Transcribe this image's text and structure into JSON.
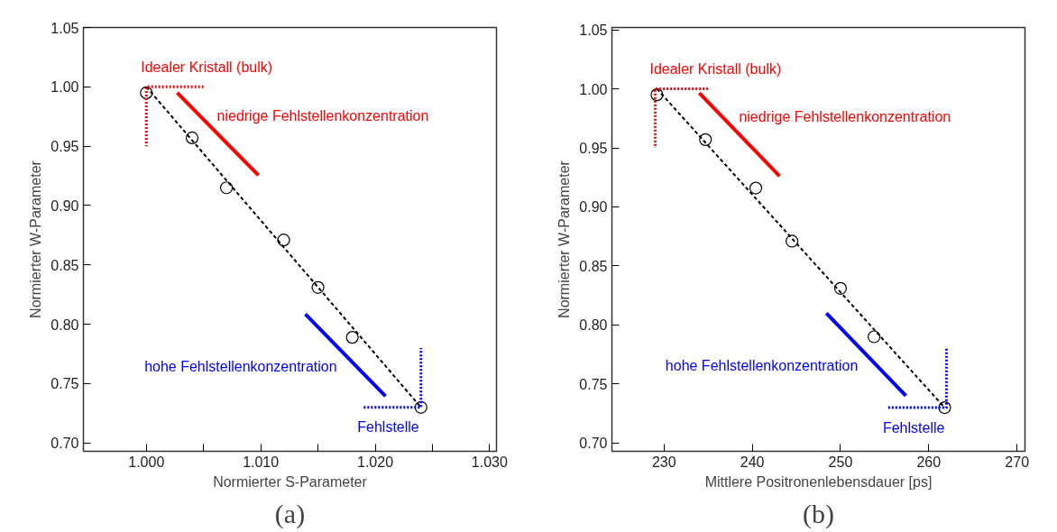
{
  "chart_data": [
    {
      "type": "scatter",
      "subtitle": "(a)",
      "xlabel": "Normierter S-Parameter",
      "ylabel": "Normierter W-Parameter",
      "xlim": [
        0.9945,
        1.0306
      ],
      "ylim": [
        0.693,
        1.05
      ],
      "xticks": [
        {
          "value": 1.0,
          "label": "1.000"
        },
        {
          "value": 1.005,
          "label": null
        },
        {
          "value": 1.01,
          "label": "1.010"
        },
        {
          "value": 1.015,
          "label": null
        },
        {
          "value": 1.02,
          "label": "1.020"
        },
        {
          "value": 1.025,
          "label": null
        },
        {
          "value": 1.03,
          "label": "1.030"
        }
      ],
      "yticks": [
        {
          "value": 0.7,
          "label": "0.70"
        },
        0.75,
        {
          "value": 0.8,
          "label": "0.80"
        },
        0.85,
        {
          "value": 0.9,
          "label": "0.90"
        },
        0.95,
        {
          "value": 1.0,
          "label": "1.00"
        },
        1.05
      ],
      "grid": false,
      "legend": false,
      "series": [
        {
          "marker": "circle",
          "color": "#000000",
          "x": [
            1.0,
            1.004,
            1.007,
            1.012,
            1.015,
            1.018,
            1.024
          ],
          "values": [
            0.995,
            0.957,
            0.915,
            0.871,
            0.831,
            0.789,
            0.73
          ]
        },
        {
          "type": "line",
          "line_style": "dashed",
          "color": "#000000",
          "x": [
            1.0,
            1.024
          ],
          "values": [
            1.0,
            0.73
          ]
        },
        {
          "type": "line",
          "line_style": "dotted",
          "color": "#ff0000",
          "name": "Idealer Kristall (bulk)",
          "x": [
            1.005,
            1.0,
            1.0
          ],
          "values": [
            1.0,
            1.0,
            0.95
          ]
        },
        {
          "type": "line",
          "line_style": "dotted",
          "color": "#0000ff",
          "name": "Fehlstelle",
          "x": [
            1.019,
            1.024,
            1.024
          ],
          "values": [
            0.73,
            0.73,
            0.78
          ]
        },
        {
          "type": "line",
          "line_style": "solid",
          "color": "#ff0000",
          "name": "niedrige Fehlstellenkonzentration",
          "x": [
            1.0027,
            1.0098
          ],
          "values": [
            0.995,
            0.9255
          ]
        },
        {
          "type": "line",
          "line_style": "solid",
          "color": "#0000ff",
          "name": "hohe Fehlstellenkonzentration",
          "x": [
            1.0139,
            1.0209
          ],
          "values": [
            0.8085,
            0.7394
          ]
        }
      ]
    },
    {
      "type": "scatter",
      "subtitle": "(b)",
      "xlabel": "Mittlere Positronenlebensdauer [ps]",
      "ylabel": "Normierter W-Parameter",
      "xlim": [
        224.1,
        270.9
      ],
      "ylim": [
        0.693,
        1.052
      ],
      "xticks": [
        230,
        240,
        250,
        260,
        270
      ],
      "yticks": [
        {
          "value": 0.7,
          "label": "0.70"
        },
        0.75,
        {
          "value": 0.8,
          "label": "0.80"
        },
        0.85,
        {
          "value": 0.9,
          "label": "0.90"
        },
        0.95,
        {
          "value": 1.0,
          "label": "1.00"
        },
        1.05
      ],
      "grid": false,
      "legend": false,
      "series": [
        {
          "marker": "circle",
          "color": "#000000",
          "x": [
            229.2,
            234.7,
            240.4,
            244.5,
            250.0,
            253.8,
            261.8
          ],
          "values": [
            0.995,
            0.957,
            0.916,
            0.871,
            0.831,
            0.79,
            0.73
          ]
        },
        {
          "type": "line",
          "line_style": "dashed",
          "color": "#000000",
          "x": [
            229.2,
            261.8
          ],
          "values": [
            1.0,
            0.73
          ]
        },
        {
          "type": "line",
          "line_style": "dotted",
          "color": "#ff0000",
          "name": "Idealer Kristall (bulk)",
          "x": [
            235.0,
            229.0,
            229.0
          ],
          "values": [
            1.0,
            1.0,
            0.95
          ]
        },
        {
          "type": "line",
          "line_style": "dotted",
          "color": "#0000ff",
          "name": "Fehlstelle",
          "x": [
            255.4,
            262.0,
            262.0
          ],
          "values": [
            0.73,
            0.73,
            0.78
          ]
        },
        {
          "type": "line",
          "line_style": "solid",
          "color": "#ff0000",
          "name": "niedrige Fehlstellenkonzentration",
          "x": [
            234.0,
            243.1
          ],
          "values": [
            0.9965,
            0.926
          ]
        },
        {
          "type": "line",
          "line_style": "solid",
          "color": "#0000ff",
          "name": "hohe Fehlstellenkonzentration",
          "x": [
            248.4,
            257.4
          ],
          "values": [
            0.81,
            0.74
          ]
        }
      ]
    }
  ]
}
